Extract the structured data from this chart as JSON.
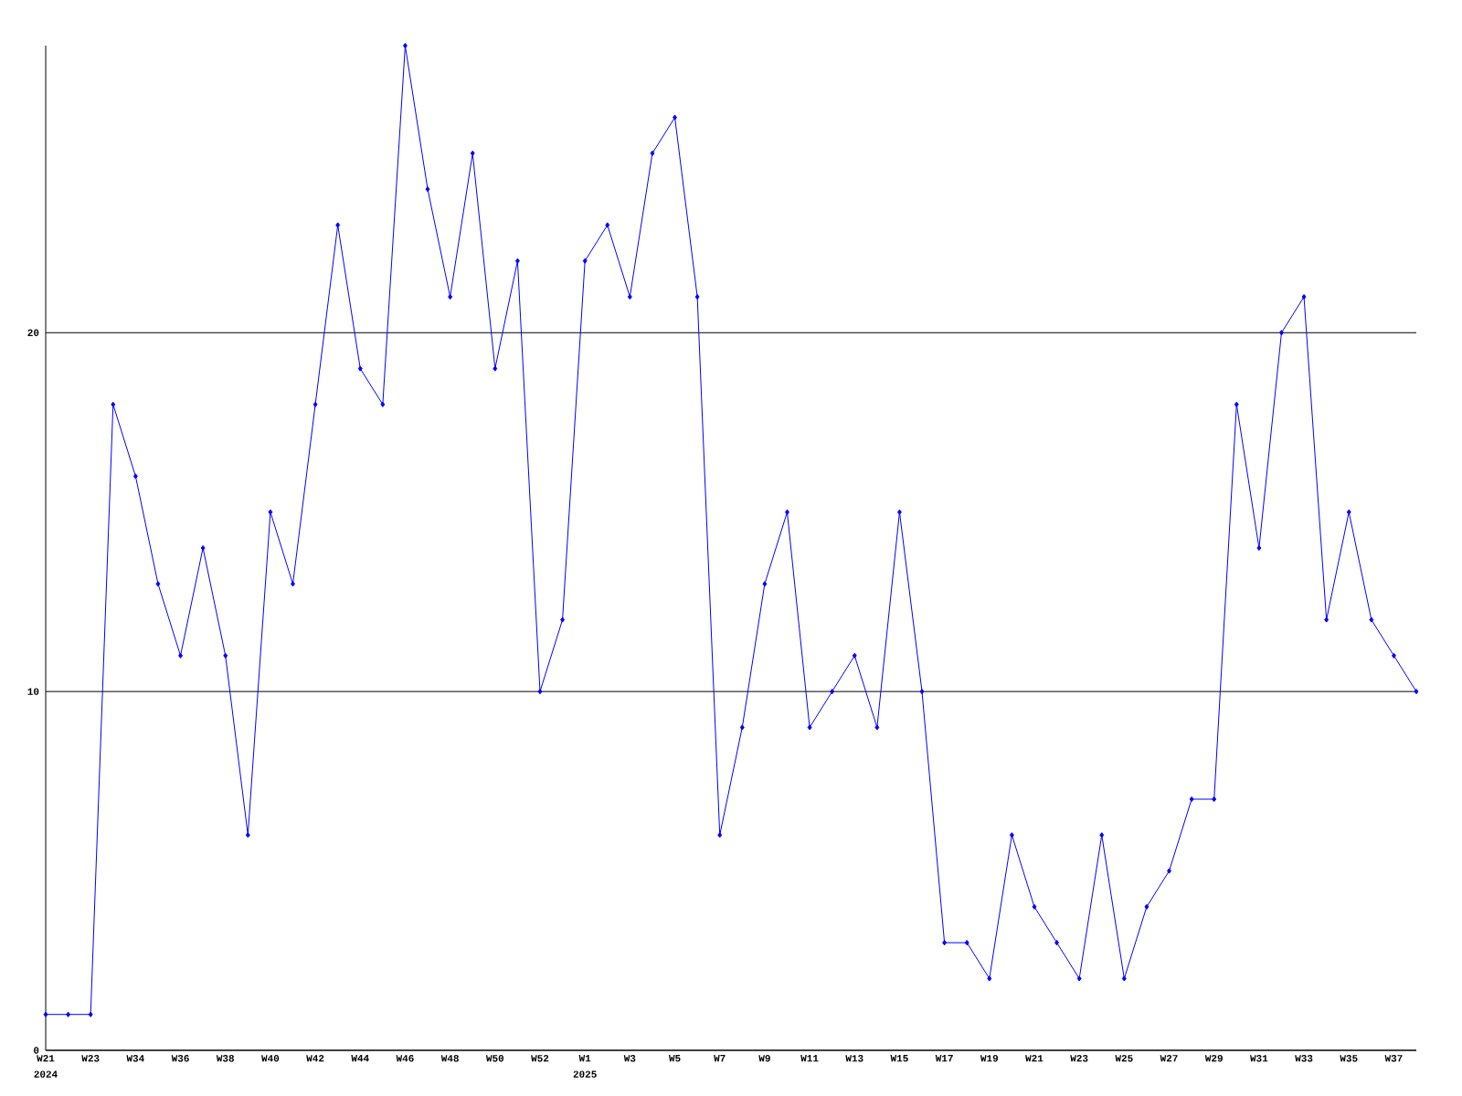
{
  "chart_data": {
    "type": "line",
    "categories": [
      "W21",
      null,
      "W23",
      null,
      "W34",
      null,
      "W36",
      null,
      "W38",
      null,
      "W40",
      null,
      "W42",
      null,
      "W44",
      null,
      "W46",
      null,
      "W48",
      null,
      "W50",
      null,
      "W52",
      null,
      "W1",
      null,
      "W3",
      null,
      "W5",
      null,
      "W7",
      null,
      "W9",
      null,
      "W11",
      null,
      "W13",
      null,
      "W15",
      null,
      "W17",
      null,
      "W19",
      null,
      "W21",
      null,
      "W23",
      null,
      "W25",
      null,
      "W27",
      null,
      "W29",
      null,
      "W31",
      null,
      "W33",
      null,
      "W35",
      null,
      "W37",
      null
    ],
    "values": [
      1,
      1,
      1,
      18,
      16,
      13,
      11,
      14,
      11,
      6,
      15,
      13,
      18,
      23,
      19,
      18,
      28,
      24,
      21,
      25,
      19,
      22,
      10,
      12,
      22,
      23,
      21,
      25,
      26,
      21,
      6,
      9,
      13,
      15,
      9,
      10,
      11,
      9,
      15,
      10,
      3,
      3,
      2,
      6,
      4,
      3,
      2,
      6,
      2,
      4,
      5,
      7,
      7,
      18,
      14,
      20,
      21,
      12,
      15,
      12,
      11,
      10
    ],
    "color": "#0000ff",
    "ylim": [
      0,
      28
    ],
    "yticks": [
      0,
      10,
      20
    ],
    "grid": "y",
    "marker": "diamond",
    "line_style": "solid",
    "annotations": [
      "2024",
      "2025"
    ]
  }
}
